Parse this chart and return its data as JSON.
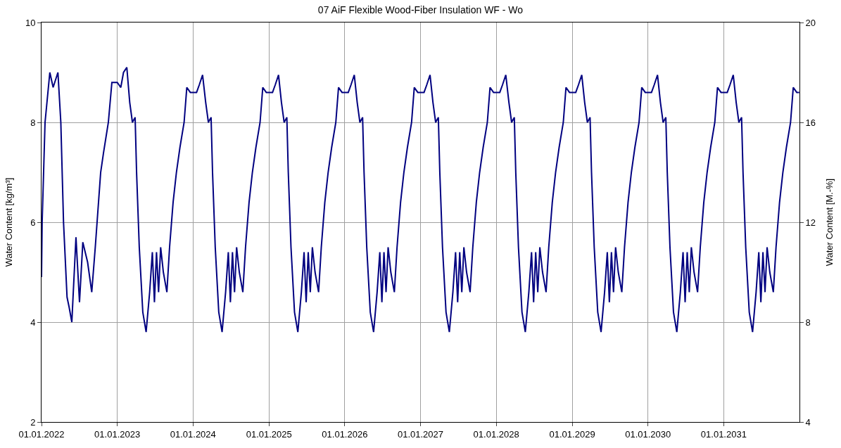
{
  "chart_data": {
    "type": "line",
    "title": "07 AiF Flexible Wood-Fiber Insulation WF - Wo",
    "ylabel": "Water Content [kg/m³]",
    "y2label": "Water Content [M.-%]",
    "xlim": [
      "2022-01-01",
      "2032-01-01"
    ],
    "xticks": [
      {
        "value": "2022-01-01",
        "label": "01.01.2022"
      },
      {
        "value": "2023-01-01",
        "label": "01.01.2023"
      },
      {
        "value": "2024-01-01",
        "label": "01.01.2024"
      },
      {
        "value": "2025-01-01",
        "label": "01.01.2025"
      },
      {
        "value": "2026-01-01",
        "label": "01.01.2026"
      },
      {
        "value": "2027-01-01",
        "label": "01.01.2027"
      },
      {
        "value": "2028-01-01",
        "label": "01.01.2028"
      },
      {
        "value": "2029-01-01",
        "label": "01.01.2029"
      },
      {
        "value": "2030-01-01",
        "label": "01.01.2030"
      },
      {
        "value": "2031-01-01",
        "label": "01.01.2031"
      }
    ],
    "ylim": [
      2,
      10
    ],
    "yticks": [
      2,
      4,
      6,
      8,
      10
    ],
    "y2lim": [
      4,
      20
    ],
    "y2ticks": [
      4,
      8,
      12,
      16,
      20
    ],
    "grid": true,
    "series": [
      {
        "color": "#000080",
        "x": [
          "2022-01-01",
          "2022-01-04",
          "2022-01-18",
          "2022-02-10",
          "2022-02-26",
          "2022-03-21",
          "2022-04-04",
          "2022-04-17",
          "2022-05-04",
          "2022-05-14",
          "2022-05-27",
          "2022-06-16",
          "2022-07-03",
          "2022-07-19",
          "2022-08-11",
          "2022-08-31",
          "2022-09-17",
          "2022-10-13",
          "2022-10-27",
          "2022-11-19",
          "2022-12-06",
          "2023-01-01",
          "2023-01-18",
          "2023-01-31",
          "2023-02-16",
          "2023-03-02",
          "2023-03-15",
          "2023-03-28",
          "2023-04-04",
          "2023-04-17",
          "2023-05-04",
          "2023-05-20",
          "2023-06-06",
          "2023-06-19",
          "2023-06-29",
          "2023-07-09",
          "2023-07-19",
          "2023-07-29",
          "2023-08-11",
          "2023-08-28",
          "2023-09-10",
          "2023-09-27",
          "2023-10-13",
          "2023-10-30",
          "2023-11-19",
          "2023-12-02",
          "2023-12-19",
          "2024-01-01",
          "2024-01-18",
          "2024-01-31",
          "2024-02-16",
          "2024-03-02",
          "2024-03-15",
          "2024-03-28",
          "2024-04-04",
          "2024-04-17",
          "2024-05-04",
          "2024-05-20",
          "2024-06-06",
          "2024-06-19",
          "2024-06-29",
          "2024-07-09",
          "2024-07-19",
          "2024-07-29",
          "2024-08-11",
          "2024-08-28",
          "2024-09-10",
          "2024-09-27",
          "2024-10-13",
          "2024-10-30",
          "2024-11-19",
          "2024-12-02",
          "2024-12-19",
          "2025-01-01",
          "2025-01-18",
          "2025-01-31",
          "2025-02-16",
          "2025-03-02",
          "2025-03-15",
          "2025-03-28",
          "2025-04-04",
          "2025-04-17",
          "2025-05-04",
          "2025-05-20",
          "2025-06-06",
          "2025-06-19",
          "2025-06-29",
          "2025-07-09",
          "2025-07-19",
          "2025-07-29",
          "2025-08-11",
          "2025-08-28",
          "2025-09-10",
          "2025-09-27",
          "2025-10-13",
          "2025-10-30",
          "2025-11-19",
          "2025-12-02",
          "2025-12-19",
          "2026-01-01",
          "2026-01-18",
          "2026-01-31",
          "2026-02-16",
          "2026-03-02",
          "2026-03-15",
          "2026-03-28",
          "2026-04-04",
          "2026-04-17",
          "2026-05-04",
          "2026-05-20",
          "2026-06-06",
          "2026-06-19",
          "2026-06-29",
          "2026-07-09",
          "2026-07-19",
          "2026-07-29",
          "2026-08-11",
          "2026-08-28",
          "2026-09-10",
          "2026-09-27",
          "2026-10-13",
          "2026-10-30",
          "2026-11-19",
          "2026-12-02",
          "2026-12-19",
          "2027-01-01",
          "2027-01-18",
          "2027-01-31",
          "2027-02-16",
          "2027-03-02",
          "2027-03-15",
          "2027-03-28",
          "2027-04-04",
          "2027-04-17",
          "2027-05-04",
          "2027-05-20",
          "2027-06-06",
          "2027-06-19",
          "2027-06-29",
          "2027-07-09",
          "2027-07-19",
          "2027-07-29",
          "2027-08-11",
          "2027-08-28",
          "2027-09-10",
          "2027-09-27",
          "2027-10-13",
          "2027-10-30",
          "2027-11-19",
          "2027-12-02",
          "2027-12-19",
          "2028-01-01",
          "2028-01-18",
          "2028-01-31",
          "2028-02-16",
          "2028-03-02",
          "2028-03-15",
          "2028-03-28",
          "2028-04-04",
          "2028-04-17",
          "2028-05-04",
          "2028-05-20",
          "2028-06-06",
          "2028-06-19",
          "2028-06-29",
          "2028-07-09",
          "2028-07-19",
          "2028-07-29",
          "2028-08-11",
          "2028-08-28",
          "2028-09-10",
          "2028-09-27",
          "2028-10-13",
          "2028-10-30",
          "2028-11-19",
          "2028-12-02",
          "2028-12-19",
          "2029-01-01",
          "2029-01-18",
          "2029-01-31",
          "2029-02-16",
          "2029-03-02",
          "2029-03-15",
          "2029-03-28",
          "2029-04-04",
          "2029-04-17",
          "2029-05-04",
          "2029-05-20",
          "2029-06-06",
          "2029-06-19",
          "2029-06-29",
          "2029-07-09",
          "2029-07-19",
          "2029-07-29",
          "2029-08-11",
          "2029-08-28",
          "2029-09-10",
          "2029-09-27",
          "2029-10-13",
          "2029-10-30",
          "2029-11-19",
          "2029-12-02",
          "2029-12-19",
          "2030-01-01",
          "2030-01-18",
          "2030-01-31",
          "2030-02-16",
          "2030-03-02",
          "2030-03-15",
          "2030-03-28",
          "2030-04-04",
          "2030-04-17",
          "2030-05-04",
          "2030-05-20",
          "2030-06-06",
          "2030-06-19",
          "2030-06-29",
          "2030-07-09",
          "2030-07-19",
          "2030-07-29",
          "2030-08-11",
          "2030-08-28",
          "2030-09-10",
          "2030-09-27",
          "2030-10-13",
          "2030-10-30",
          "2030-11-19",
          "2030-12-02",
          "2030-12-19",
          "2031-01-01",
          "2031-01-18",
          "2031-01-31",
          "2031-02-16",
          "2031-03-02",
          "2031-03-15",
          "2031-03-28",
          "2031-04-04",
          "2031-04-17",
          "2031-05-04",
          "2031-05-20",
          "2031-06-06",
          "2031-06-19",
          "2031-06-29",
          "2031-07-09",
          "2031-07-19",
          "2031-07-29",
          "2031-08-11",
          "2031-08-28",
          "2031-09-10",
          "2031-09-27",
          "2031-10-13",
          "2031-10-30",
          "2031-11-19",
          "2031-12-02",
          "2031-12-19",
          "2031-12-31"
        ],
        "values": [
          4.9,
          6.0,
          8.0,
          9.0,
          8.7,
          9.0,
          8.0,
          6.0,
          4.5,
          4.3,
          4.0,
          5.7,
          4.4,
          5.6,
          5.2,
          4.6,
          5.5,
          7.0,
          7.4,
          8.0,
          8.8,
          8.8,
          8.7,
          9.0,
          9.1,
          8.4,
          8.0,
          8.1,
          7.0,
          5.5,
          4.2,
          3.8,
          4.6,
          5.4,
          4.4,
          5.4,
          4.6,
          5.5,
          5.0,
          4.6,
          5.5,
          6.4,
          7.0,
          7.5,
          8.0,
          8.7,
          8.6,
          8.6,
          8.6,
          8.75,
          8.95,
          8.4,
          8.0,
          8.1,
          7.0,
          5.5,
          4.2,
          3.8,
          4.6,
          5.4,
          4.4,
          5.4,
          4.6,
          5.5,
          5.0,
          4.6,
          5.5,
          6.4,
          7.0,
          7.5,
          8.0,
          8.7,
          8.6,
          8.6,
          8.6,
          8.75,
          8.95,
          8.4,
          8.0,
          8.1,
          7.0,
          5.5,
          4.2,
          3.8,
          4.6,
          5.4,
          4.4,
          5.4,
          4.6,
          5.5,
          5.0,
          4.6,
          5.5,
          6.4,
          7.0,
          7.5,
          8.0,
          8.7,
          8.6,
          8.6,
          8.6,
          8.75,
          8.95,
          8.4,
          8.0,
          8.1,
          7.0,
          5.5,
          4.2,
          3.8,
          4.6,
          5.4,
          4.4,
          5.4,
          4.6,
          5.5,
          5.0,
          4.6,
          5.5,
          6.4,
          7.0,
          7.5,
          8.0,
          8.7,
          8.6,
          8.6,
          8.6,
          8.75,
          8.95,
          8.4,
          8.0,
          8.1,
          7.0,
          5.5,
          4.2,
          3.8,
          4.6,
          5.4,
          4.4,
          5.4,
          4.6,
          5.5,
          5.0,
          4.6,
          5.5,
          6.4,
          7.0,
          7.5,
          8.0,
          8.7,
          8.6,
          8.6,
          8.6,
          8.75,
          8.95,
          8.4,
          8.0,
          8.1,
          7.0,
          5.5,
          4.2,
          3.8,
          4.6,
          5.4,
          4.4,
          5.4,
          4.6,
          5.5,
          5.0,
          4.6,
          5.5,
          6.4,
          7.0,
          7.5,
          8.0,
          8.7,
          8.6,
          8.6,
          8.6,
          8.75,
          8.95,
          8.4,
          8.0,
          8.1,
          7.0,
          5.5,
          4.2,
          3.8,
          4.6,
          5.4,
          4.4,
          5.4,
          4.6,
          5.5,
          5.0,
          4.6,
          5.5,
          6.4,
          7.0,
          7.5,
          8.0,
          8.7,
          8.6,
          8.6,
          8.6,
          8.75,
          8.95,
          8.4,
          8.0,
          8.1,
          7.0,
          5.5,
          4.2,
          3.8,
          4.6,
          5.4,
          4.4,
          5.4,
          4.6,
          5.5,
          5.0,
          4.6,
          5.5,
          6.4,
          7.0,
          7.5,
          8.0,
          8.7,
          8.6,
          8.6,
          8.6,
          8.75,
          8.95,
          8.4,
          8.0,
          8.1,
          7.0,
          5.5,
          4.2,
          3.8,
          4.6,
          5.4,
          4.4,
          5.4,
          4.6,
          5.5,
          5.0,
          4.6,
          5.5,
          6.4,
          7.0,
          7.5,
          8.0,
          8.7,
          8.6,
          8.6
        ]
      }
    ]
  }
}
